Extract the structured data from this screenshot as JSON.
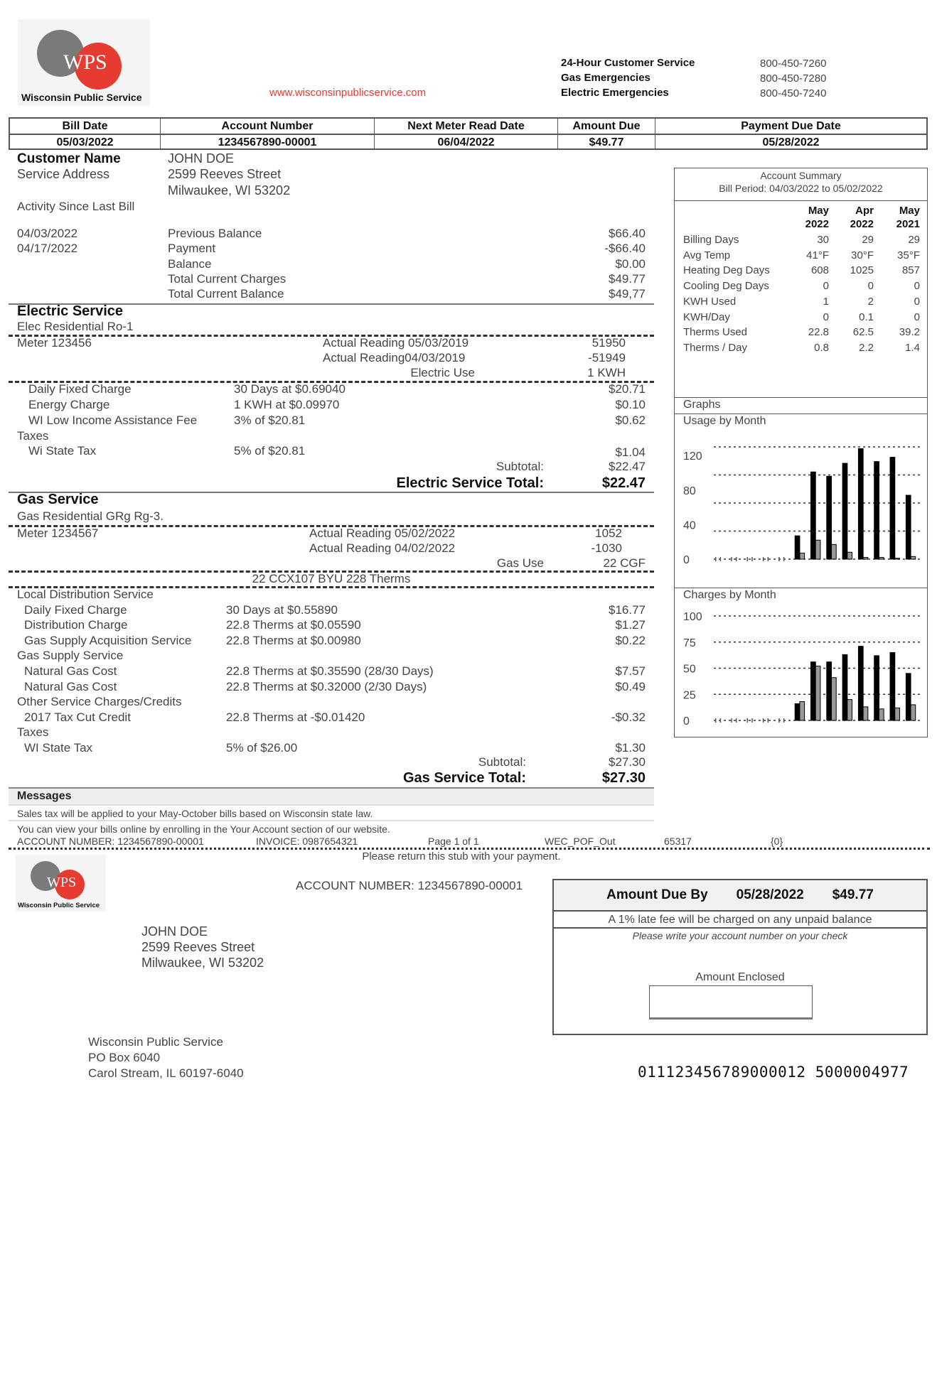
{
  "brand": {
    "name": "Wisconsin Public Service",
    "logo_text": "WPS",
    "website": "www.wisconsinpublicservice.com",
    "colors": {
      "red": "#e53b30",
      "gray": "#7a7a7a"
    }
  },
  "contacts": [
    {
      "label": "24-Hour Customer Service",
      "phone": "800-450-7260"
    },
    {
      "label": "Gas Emergencies",
      "phone": "800-450-7280"
    },
    {
      "label": "Electric Emergencies",
      "phone": "800-450-7240"
    }
  ],
  "header_table": {
    "headers": [
      "Bill Date",
      "Account Number",
      "Next Meter Read Date",
      "Amount Due",
      "Payment Due Date"
    ],
    "values": [
      "05/03/2022",
      "1234567890-00001",
      "06/04/2022",
      "$49.77",
      "05/28/2022"
    ]
  },
  "customer": {
    "name_label": "Customer Name",
    "name": "JOHN DOE",
    "address_label": "Service Address",
    "address1": "2599 Reeves Street",
    "address2": "Milwaukee, WI 53202",
    "activity_label": "Activity Since Last Bill"
  },
  "activity": [
    {
      "date": "04/03/2022",
      "desc": "Previous Balance",
      "amount": "$66.40"
    },
    {
      "date": "04/17/2022",
      "desc": "Payment",
      "amount": "-$66.40"
    },
    {
      "date": "",
      "desc": "Balance",
      "amount": "$0.00"
    },
    {
      "date": "",
      "desc": "Total Current Charges",
      "amount": "$49.77"
    },
    {
      "date": "",
      "desc": "Total Current Balance",
      "amount": "$49,77"
    }
  ],
  "electric": {
    "title": "Electric Service",
    "rate": "Elec Residential Ro-1",
    "meter": "Meter 123456",
    "reading1_label": "Actual Reading 05/03/2019",
    "reading1": "51950",
    "reading2_label": "Actual Reading04/03/2019",
    "reading2": "-51949",
    "use_label": "Electric Use",
    "use": "1 KWH",
    "charges": [
      {
        "label": "Daily Fixed Charge",
        "detail": "30 Days at $0.69040",
        "amount": "$20.71"
      },
      {
        "label": "Energy Charge",
        "detail": "1 KWH at $0.09970",
        "amount": "$0.10"
      },
      {
        "label": "WI Low Income Assistance Fee",
        "detail": "3% of $20.81",
        "amount": "$0.62"
      }
    ],
    "taxes_label": "Taxes",
    "tax": {
      "label": "Wi State Tax",
      "detail": "5% of $20.81",
      "amount": "$1.04"
    },
    "subtotal_label": "Subtotal:",
    "subtotal": "$22.47",
    "total_label": "Electric Service Total:",
    "total": "$22.47"
  },
  "gas": {
    "title": "Gas Service",
    "rate": "Gas Residential  GRg  Rg-3.",
    "meter": "Meter 1234567",
    "reading1_label": "Actual Reading 05/02/2022",
    "reading1": "1052",
    "reading2_label": "Actual Reading 04/02/2022",
    "reading2": "-1030",
    "use_label": "Gas Use",
    "use": "22 CGF",
    "therms": "22 CCX107 BYU 228 Therms",
    "lines": [
      {
        "label": "Local Distribution Service",
        "group": true
      },
      {
        "label": "Daily Fixed Charge",
        "detail": "30 Days at $0.55890",
        "amount": "$16.77"
      },
      {
        "label": "Distribution Charge",
        "detail": "22.8 Therms at $0.05590",
        "amount": "$1.27"
      },
      {
        "label": "Gas Supply Acquisition Service",
        "detail": "22.8 Therms at $0.00980",
        "amount": "$0.22"
      },
      {
        "label": "Gas Supply Service",
        "group": true
      },
      {
        "label": "Natural Gas Cost",
        "detail": "22.8 Therms at $0.35590 (28/30 Days)",
        "amount": "$7.57"
      },
      {
        "label": "Natural Gas Cost",
        "detail": "22.8 Therms at $0.32000 (2/30 Days)",
        "amount": "$0.49"
      },
      {
        "label": "Other Service Charges/Credits",
        "group": true
      },
      {
        "label": "2017 Tax Cut Credit",
        "detail": "22.8 Therms at -$0.01420",
        "amount": "-$0.32"
      },
      {
        "label": "Taxes",
        "group": true
      },
      {
        "label": "WI State Tax",
        "detail": "5% of $26.00",
        "amount": "$1.30"
      }
    ],
    "subtotal_label": "Subtotal:",
    "subtotal": "$27.30",
    "total_label": "Gas Service Total:",
    "total": "$27.30"
  },
  "messages": {
    "title": "Messages",
    "items": [
      "Sales tax will be applied to your May-October bills based on Wisconsin state law.",
      "You can view your bills online by enrolling in the Your Account section of our website."
    ]
  },
  "footer_line": {
    "account": "ACCOUNT NUMBER: 1234567890-00001",
    "invoice": "INVOICE: 0987654321",
    "page": "Page 1 of 1",
    "code": "WEC_POF_Out",
    "number": "65317",
    "flag": "{0}"
  },
  "summary": {
    "title": "Account Summary",
    "period": "Bill Period: 04/03/2022 to 05/02/2022",
    "columns": [
      [
        "May",
        "2022"
      ],
      [
        "Apr",
        "2022"
      ],
      [
        "May",
        "2021"
      ]
    ],
    "rows": [
      {
        "label": "Billing Days",
        "values": [
          "30",
          "29",
          "29"
        ]
      },
      {
        "label": "Avg Temp",
        "values": [
          "41°F",
          "30°F",
          "35°F"
        ]
      },
      {
        "label": "Heating Deg Days",
        "values": [
          "608",
          "1025",
          "857"
        ]
      },
      {
        "label": "Cooling Deg Days",
        "values": [
          "0",
          "0",
          "0"
        ]
      },
      {
        "label": "KWH Used",
        "values": [
          "1",
          "2",
          "0"
        ]
      },
      {
        "label": "KWH/Day",
        "values": [
          "0",
          "0.1",
          "0"
        ]
      },
      {
        "label": "Therms Used",
        "values": [
          "22.8",
          "62.5",
          "39.2"
        ]
      },
      {
        "label": "Therms / Day",
        "values": [
          "0.8",
          "2.2",
          "1.4"
        ]
      }
    ],
    "graphs_label": "Graphs"
  },
  "chart_data": [
    {
      "type": "bar",
      "title": "Usage by Month",
      "yticks": [
        "120",
        "80",
        "40",
        "0"
      ],
      "ylim": [
        0,
        130
      ],
      "grid": true,
      "series": [
        {
          "color": "#000",
          "values": [
            null,
            null,
            null,
            null,
            null,
            27,
            101,
            96,
            111,
            128,
            113,
            118,
            74
          ]
        },
        {
          "color": "#999",
          "values": [
            null,
            null,
            null,
            null,
            null,
            7,
            22,
            17,
            8,
            2,
            2,
            1,
            3
          ]
        }
      ]
    },
    {
      "type": "bar",
      "title": "Charges by Month",
      "yticks": [
        "100",
        "75",
        "50",
        "25",
        "0"
      ],
      "ylim": [
        0,
        100
      ],
      "grid": true,
      "series": [
        {
          "color": "#000",
          "values": [
            null,
            null,
            null,
            null,
            null,
            16,
            56,
            56,
            63,
            71,
            62,
            65,
            45
          ]
        },
        {
          "color": "#999",
          "values": [
            null,
            null,
            null,
            null,
            null,
            18,
            52,
            41,
            20,
            13,
            11,
            12,
            15
          ]
        }
      ]
    }
  ],
  "stub": {
    "return_note": "Please return this stub with your payment.",
    "account": "ACCOUNT NUMBER: 1234567890-00001",
    "due_label": "Amount Due By",
    "due_date": "05/28/2022",
    "due_amount": "$49.77",
    "late_fee": "A 1% late fee will be charged on any unpaid balance",
    "check_note": "Please write your account number on your check",
    "enclosed_label": "Amount Enclosed",
    "customer": [
      "JOHN DOE",
      "2599 Reeves Street",
      "Milwaukee, WI 53202"
    ],
    "remit": [
      "Wisconsin Public Service",
      "PO Box 6040",
      "Carol Stream, IL 60197-6040"
    ],
    "scanline": "011123456789000012 5000004977"
  }
}
